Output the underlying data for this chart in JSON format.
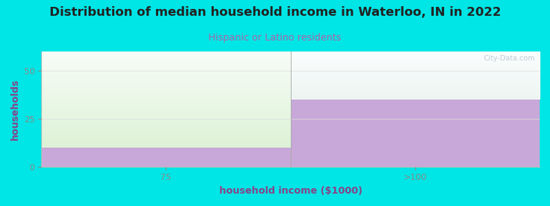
{
  "title": "Distribution of median household income in Waterloo, IN in 2022",
  "subtitle": "Hispanic or Latino residents",
  "xlabel": "household income ($1000)",
  "ylabel": "households",
  "categories": [
    "75",
    ">100"
  ],
  "bar1_value": 10,
  "bar2_value": 35,
  "ylim": [
    0,
    60
  ],
  "yticks": [
    0,
    25,
    50
  ],
  "purple_color": "#c8a8d8",
  "green_color": "#d8f0d0",
  "plot_top_color": "#f0f8f8",
  "background_color": "#00e5e5",
  "title_color": "#222222",
  "subtitle_color": "#aa66aa",
  "xlabel_color": "#884488",
  "ylabel_color": "#884488",
  "tick_color": "#888888",
  "watermark": "City-Data.com",
  "grid_color": "#dddddd",
  "title_fontsize": 13,
  "subtitle_fontsize": 10,
  "axis_label_fontsize": 10,
  "tick_fontsize": 9
}
